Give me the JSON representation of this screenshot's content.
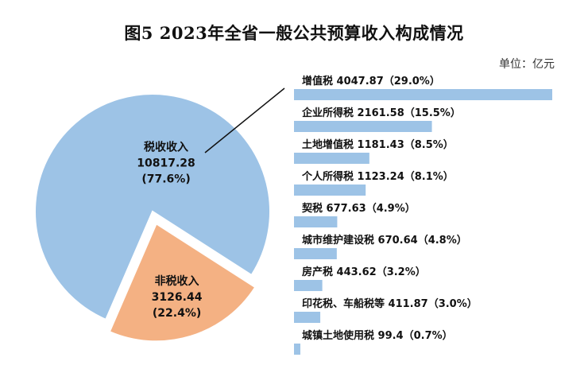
{
  "title": "图5  2023年全省一般公共预算收入构成情况",
  "unit": "单位：亿元",
  "chart_data": [
    {
      "type": "pie",
      "categories": [
        "税收收入",
        "非税收入"
      ],
      "values": [
        10817.28,
        3126.44
      ],
      "percent_labels": [
        "(77.6%)",
        "(22.4%)"
      ],
      "value_labels": [
        "10817.28",
        "3126.44"
      ],
      "colors": [
        "#9dc3e6",
        "#f4b183"
      ],
      "exploded": "非税收入"
    },
    {
      "type": "bar",
      "orientation": "horizontal",
      "categories": [
        "增值税",
        "企业所得税",
        "土地增值税",
        "个人所得税",
        "契税",
        "城市维护建设税",
        "房产税",
        "印花税、车船税等",
        "城镇土地使用税"
      ],
      "values": [
        4047.87,
        2161.58,
        1181.43,
        1123.24,
        677.63,
        670.64,
        443.62,
        411.87,
        99.4
      ],
      "labels": [
        "增值税 4047.87（29.0%）",
        "企业所得税 2161.58（15.5%）",
        "土地增值税 1181.43（8.5%）",
        "个人所得税 1123.24（8.1%）",
        "契税 677.63（4.9%）",
        "城市维护建设税 670.64（4.8%）",
        "房产税 443.62（3.2%）",
        "印花税、车船税等 411.87（3.0%）",
        "城镇土地使用税 99.4（0.7%）"
      ],
      "color": "#9dc3e6"
    }
  ]
}
